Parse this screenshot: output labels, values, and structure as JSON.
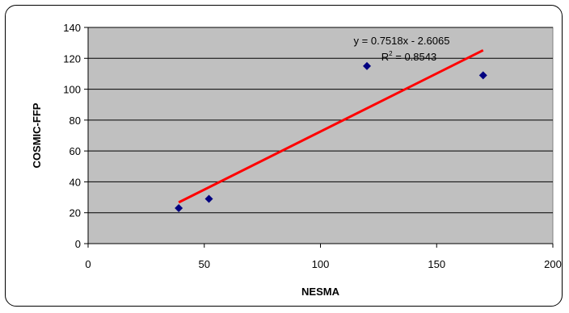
{
  "chart_data": {
    "type": "scatter",
    "title": "",
    "xlabel": "NESMA",
    "ylabel": "COSMIC-FFP",
    "xlim": [
      0,
      200
    ],
    "ylim": [
      0,
      140
    ],
    "xticks": [
      0,
      50,
      100,
      150,
      200
    ],
    "yticks": [
      0,
      20,
      40,
      60,
      80,
      100,
      120,
      140
    ],
    "grid": "horizontal",
    "plot_background": "#c0c0c0",
    "points": [
      {
        "x": 39,
        "y": 23
      },
      {
        "x": 52,
        "y": 29
      },
      {
        "x": 120,
        "y": 115
      },
      {
        "x": 170,
        "y": 109
      }
    ],
    "marker_color": "#000080",
    "trendline": {
      "slope": 0.7518,
      "intercept": -2.6065,
      "x_range": [
        39,
        170
      ],
      "color": "#ff0000",
      "equation_label": "y = 0.7518x - 2.6065",
      "r2_prefix": "R",
      "r2_exponent": "2",
      "r2_value": " = 0.8543"
    }
  }
}
